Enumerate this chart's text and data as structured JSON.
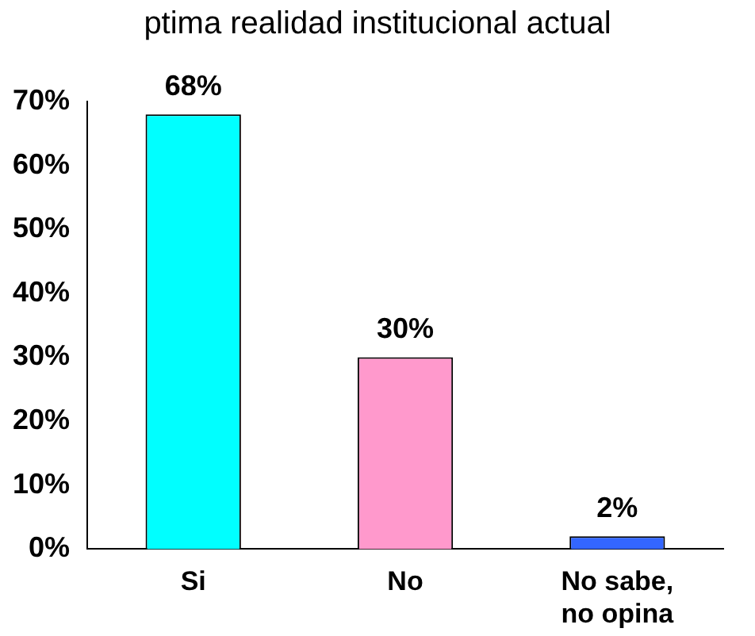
{
  "chart_data": {
    "type": "bar",
    "title": "ptima realidad institucional actual",
    "categories": [
      "Si",
      "No",
      [
        "No sabe,",
        "no opina"
      ]
    ],
    "values": [
      68,
      30,
      2
    ],
    "colors": [
      "#00ffff",
      "#ff99cc",
      "#3366ff"
    ],
    "value_labels": [
      "68%",
      "30%",
      "2%"
    ],
    "ylim": [
      0,
      70
    ],
    "yticks": [
      {
        "value": 0,
        "label": "0%"
      },
      {
        "value": 10,
        "label": "10%"
      },
      {
        "value": 20,
        "label": "20%"
      },
      {
        "value": 30,
        "label": "30%"
      },
      {
        "value": 40,
        "label": "40%"
      },
      {
        "value": 50,
        "label": "50%"
      },
      {
        "value": 60,
        "label": "60%"
      },
      {
        "value": 70,
        "label": "70%"
      }
    ],
    "grid": false,
    "legend": false
  }
}
